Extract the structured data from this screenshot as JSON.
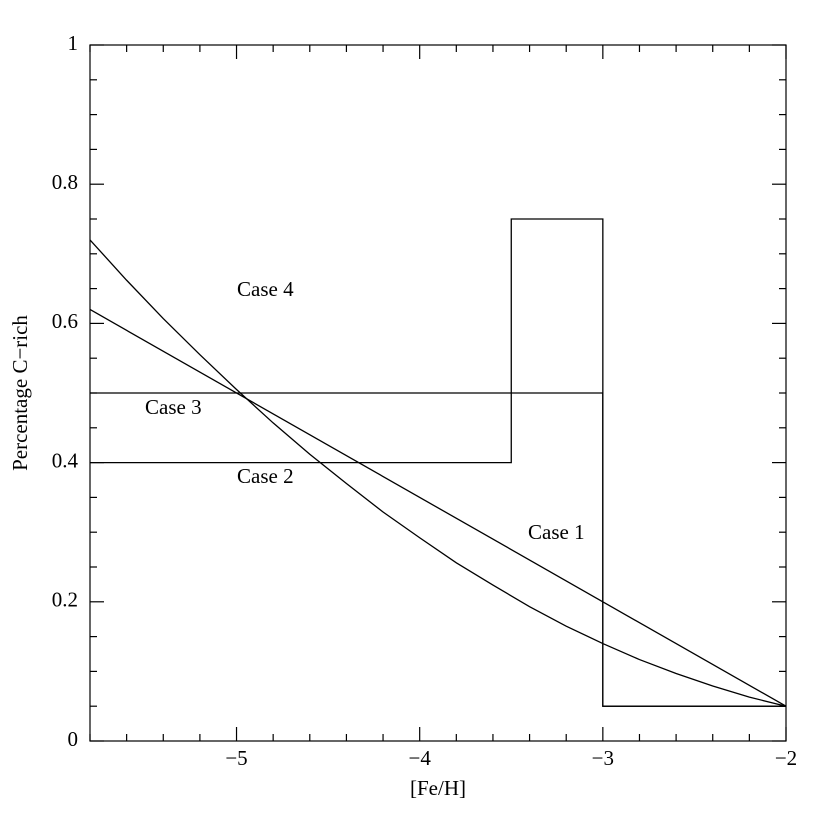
{
  "chart_data": {
    "type": "line",
    "xlabel": "[Fe/H]",
    "ylabel": "Percentage C−rich",
    "xlim": [
      -5.8,
      -2
    ],
    "ylim": [
      0,
      1
    ],
    "xticks": [
      {
        "value": -5,
        "label": "−5"
      },
      {
        "value": -4,
        "label": "−4"
      },
      {
        "value": -3,
        "label": "−3"
      },
      {
        "value": -2,
        "label": "−2"
      }
    ],
    "yticks": [
      0,
      0.2,
      0.4,
      0.6,
      0.8,
      1
    ],
    "color": "#000000",
    "series": [
      {
        "name": "Case 1",
        "x": [
          -5.8,
          -2
        ],
        "values": [
          0.62,
          0.05
        ]
      },
      {
        "name": "Case 2",
        "x": [
          -5.8,
          -3.5,
          -3.5,
          -3,
          -3,
          -2
        ],
        "values": [
          0.4,
          0.4,
          0.75,
          0.75,
          0.05,
          0.05
        ]
      },
      {
        "name": "Case 3",
        "x": [
          -5.8,
          -3,
          -3,
          -2
        ],
        "values": [
          0.5,
          0.5,
          0.05,
          0.05
        ]
      },
      {
        "name": "Case 4",
        "x": [
          -5.8,
          -5.6,
          -5.4,
          -5.2,
          -5.0,
          -4.8,
          -4.6,
          -4.4,
          -4.2,
          -4.0,
          -3.8,
          -3.6,
          -3.4,
          -3.2,
          -3.0,
          -2.8,
          -2.6,
          -2.4,
          -2.2,
          -2.0
        ],
        "values": [
          0.72,
          0.662,
          0.607,
          0.555,
          0.505,
          0.457,
          0.412,
          0.37,
          0.329,
          0.292,
          0.256,
          0.224,
          0.193,
          0.165,
          0.14,
          0.117,
          0.097,
          0.079,
          0.063,
          0.05
        ]
      }
    ]
  }
}
